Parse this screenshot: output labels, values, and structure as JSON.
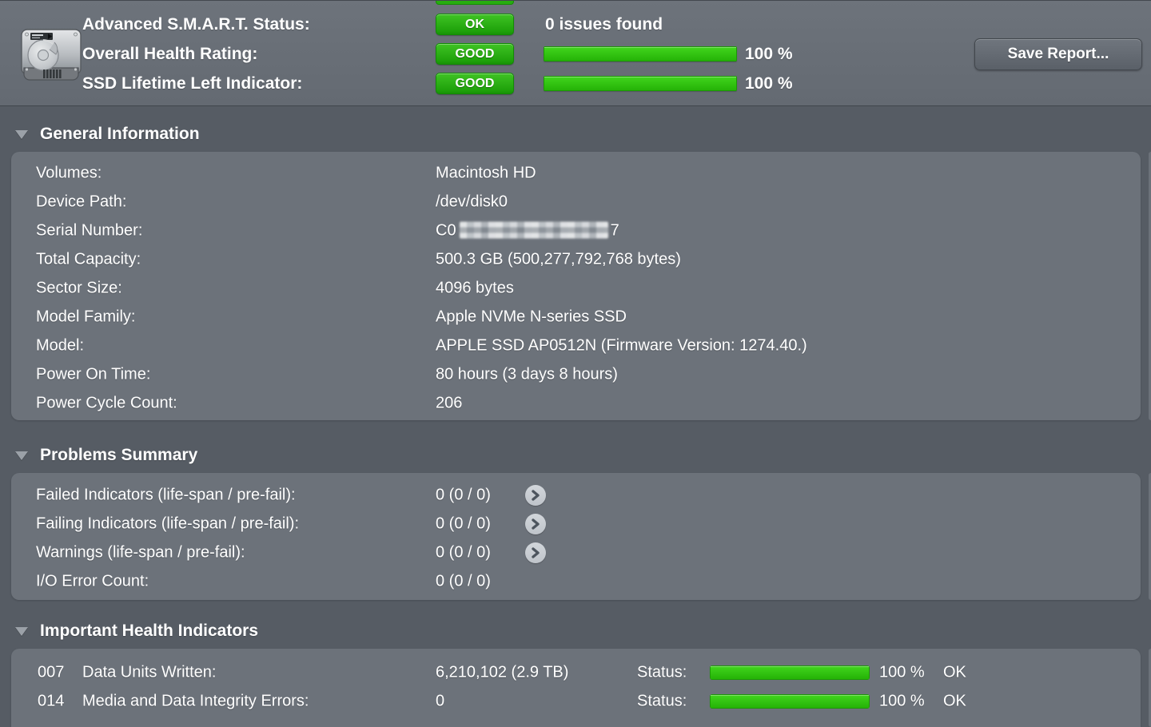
{
  "colors": {
    "status_green": "#2db40e",
    "badge_green": "#1ea10a",
    "panel_gray": "#6c727a",
    "background_gray": "#565c64",
    "header_gray": "#687079"
  },
  "icons": {
    "drive": "hard-drive-icon",
    "disclosure": "triangle-down-icon",
    "detail": "chevron-right-circle-icon"
  },
  "header": {
    "smart": {
      "label": "Advanced S.M.A.R.T. Status:",
      "badge": "OK",
      "note": "0 issues found"
    },
    "health": {
      "label": "Overall Health Rating:",
      "badge": "GOOD",
      "percent": 100,
      "percent_label": "100 %"
    },
    "lifetime": {
      "label": "SSD Lifetime Left Indicator:",
      "badge": "GOOD",
      "percent": 100,
      "percent_label": "100 %"
    },
    "save_button": "Save Report..."
  },
  "general": {
    "title": "General Information",
    "rows": [
      {
        "label": "Volumes:",
        "value": "Macintosh HD"
      },
      {
        "label": "Device Path:",
        "value": "/dev/disk0"
      },
      {
        "label": "Serial Number:",
        "prefix": "C0",
        "suffix": "7",
        "masked": true
      },
      {
        "label": "Total Capacity:",
        "value": "500.3 GB (500,277,792,768 bytes)"
      },
      {
        "label": "Sector Size:",
        "value": "4096 bytes"
      },
      {
        "label": "Model Family:",
        "value": "Apple NVMe N-series SSD"
      },
      {
        "label": "Model:",
        "value": "APPLE SSD AP0512N  (Firmware Version: 1274.40.)"
      },
      {
        "label": "Power On Time:",
        "value": "80 hours (3 days 8 hours)"
      },
      {
        "label": "Power Cycle Count:",
        "value": "206"
      }
    ]
  },
  "problems": {
    "title": "Problems Summary",
    "rows": [
      {
        "label": "Failed Indicators (life-span / pre-fail):",
        "value": "0 (0 / 0)",
        "detail_button": true
      },
      {
        "label": "Failing Indicators (life-span / pre-fail):",
        "value": "0 (0 / 0)",
        "detail_button": true
      },
      {
        "label": "Warnings (life-span / pre-fail):",
        "value": "0 (0 / 0)",
        "detail_button": true
      },
      {
        "label": "I/O Error Count:",
        "value": "0 (0 / 0)",
        "detail_button": false
      }
    ]
  },
  "health_indicators": {
    "title": "Important Health Indicators",
    "rows": [
      {
        "id": "007",
        "label": "Data Units Written:",
        "value": "6,210,102 (2.9 TB)",
        "status_label": "Status:",
        "percent": 100,
        "percent_label": "100 %",
        "status": "OK"
      },
      {
        "id": "014",
        "label": "Media and Data Integrity Errors:",
        "value": "0",
        "status_label": "Status:",
        "percent": 100,
        "percent_label": "100 %",
        "status": "OK"
      }
    ]
  }
}
